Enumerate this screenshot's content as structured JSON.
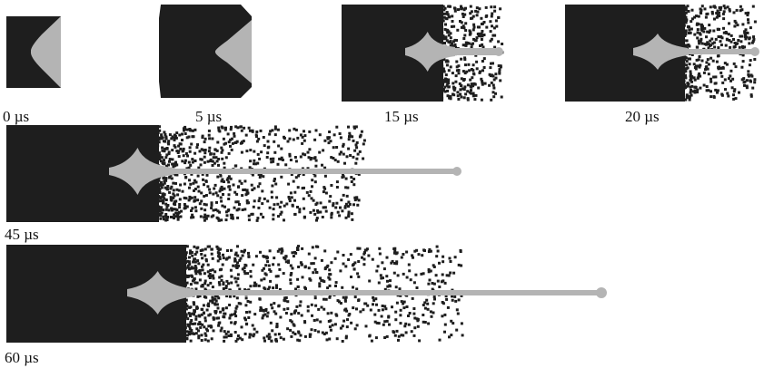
{
  "frames": [
    {
      "label": "0 µs"
    },
    {
      "label": "5 µs"
    },
    {
      "label": "15 µs"
    },
    {
      "label": "20 µs"
    },
    {
      "label": "45 µs"
    },
    {
      "label": "60 µs"
    }
  ]
}
